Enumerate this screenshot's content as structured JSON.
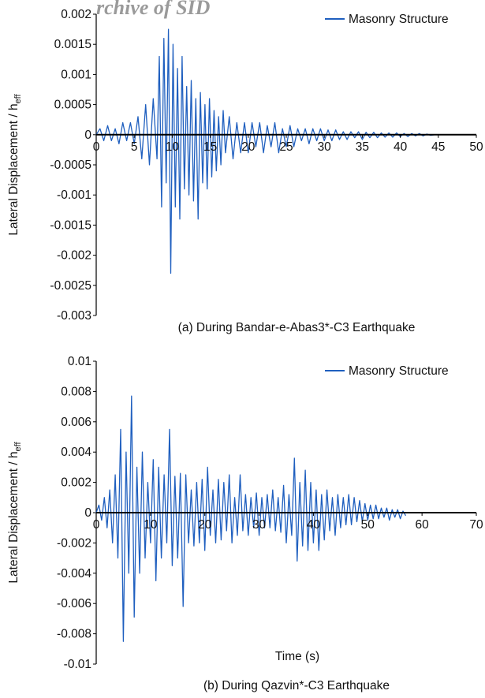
{
  "watermark": "rchive of SID",
  "colors": {
    "series": "#1f5fbf",
    "axis": "#000000",
    "text": "#111111"
  },
  "chart_data": [
    {
      "type": "line",
      "caption": "(a) During Bandar-e-Abas3*-C3 Earthquake",
      "ylabel": "Lateral Displacement / h",
      "ylabel_sub": "eff",
      "xlabel": "",
      "xlim": [
        0,
        50
      ],
      "ylim": [
        -0.003,
        0.002
      ],
      "xticks": [
        "0",
        "5",
        "10",
        "15",
        "20",
        "25",
        "30",
        "35",
        "40",
        "45",
        "50"
      ],
      "yticks": [
        "0.002",
        "0.0015",
        "0.001",
        "0.0005",
        "0",
        "-0.0005",
        "-0.001",
        "-0.0015",
        "-0.002",
        "-0.0025",
        "-0.003"
      ],
      "legend": "top-right",
      "grid": false,
      "series": [
        {
          "name": "Masonry Structure",
          "x": [
            0,
            0.5,
            1,
            1.5,
            2,
            2.5,
            3,
            3.5,
            4,
            4.5,
            5,
            5.5,
            6,
            6.5,
            7,
            7.5,
            8,
            8.3,
            8.6,
            8.9,
            9.2,
            9.5,
            9.8,
            10.1,
            10.4,
            10.7,
            11,
            11.3,
            11.6,
            11.9,
            12.2,
            12.5,
            12.8,
            13.1,
            13.4,
            13.7,
            14,
            14.3,
            14.6,
            14.9,
            15.2,
            15.5,
            15.8,
            16.1,
            16.4,
            16.7,
            17,
            17.5,
            18,
            18.5,
            19,
            19.5,
            20,
            20.5,
            21,
            21.5,
            22,
            22.5,
            23,
            23.5,
            24,
            24.5,
            25,
            25.5,
            26,
            26.5,
            27,
            27.5,
            28,
            28.5,
            29,
            29.5,
            30,
            30.5,
            31,
            31.5,
            32,
            32.5,
            33,
            33.5,
            34,
            34.5,
            35,
            35.5,
            36,
            36.5,
            37,
            37.5,
            38,
            38.5,
            39,
            39.5,
            40,
            40.5,
            41,
            41.5,
            42,
            42.5,
            43,
            43.5,
            44,
            44.5
          ],
          "y": [
            0,
            0.0001,
            -0.0001,
            0.00015,
            -0.0001,
            0.0001,
            -0.00015,
            0.0002,
            -0.0001,
            0.0002,
            -0.00015,
            0.0003,
            -0.0004,
            0.0005,
            -0.0005,
            0.0006,
            -0.0004,
            0.0013,
            -0.0012,
            0.0016,
            -0.0008,
            0.00175,
            -0.0023,
            0.0015,
            -0.0012,
            0.0011,
            -0.0014,
            0.0013,
            -0.0009,
            0.0008,
            -0.001,
            0.0009,
            -0.0011,
            0.0006,
            -0.0014,
            0.0007,
            -0.0008,
            0.0005,
            -0.0009,
            0.0006,
            -0.0007,
            0.0004,
            -0.0006,
            0.0003,
            -0.0005,
            0.0004,
            -0.0003,
            0.0003,
            -0.0004,
            0.0002,
            -0.0003,
            0.0002,
            -0.0003,
            0.0002,
            -0.0002,
            0.0002,
            -0.0003,
            0.00015,
            -0.0002,
            0.0002,
            -0.0003,
            0.0001,
            -0.0002,
            0.00015,
            -0.0002,
            0.0001,
            -0.0001,
            0.0001,
            -0.00015,
            0.0001,
            -0.0001,
            0.0001,
            -0.0001,
            8e-05,
            -0.0001,
            8e-05,
            -8e-05,
            5e-05,
            -8e-05,
            5e-05,
            -5e-05,
            5e-05,
            -8e-05,
            4e-05,
            -5e-05,
            4e-05,
            -5e-05,
            3e-05,
            -4e-05,
            3e-05,
            -4e-05,
            3e-05,
            -3e-05,
            2e-05,
            -3e-05,
            2e-05,
            -2e-05,
            2e-05,
            -2e-05,
            1e-05,
            -1e-05,
            0
          ]
        }
      ]
    },
    {
      "type": "line",
      "caption": "(b) During Qazvin*-C3 Earthquake",
      "ylabel": "Lateral Displacement / h",
      "ylabel_sub": "eff",
      "xlabel": "Time (s)",
      "xlim": [
        0,
        70
      ],
      "ylim": [
        -0.01,
        0.01
      ],
      "xticks": [
        "0",
        "10",
        "20",
        "30",
        "40",
        "50",
        "60",
        "70"
      ],
      "yticks": [
        "0.01",
        "0.008",
        "0.006",
        "0.004",
        "0.002",
        "0",
        "-0.002",
        "-0.004",
        "-0.006",
        "-0.008",
        "-0.01"
      ],
      "legend": "top-right",
      "grid": false,
      "series": [
        {
          "name": "Masonry Structure",
          "x": [
            0,
            0.5,
            1,
            1.5,
            2,
            2.5,
            3,
            3.5,
            4,
            4.5,
            5,
            5.5,
            6,
            6.5,
            7,
            7.5,
            8,
            8.5,
            9,
            9.5,
            10,
            10.5,
            11,
            11.5,
            12,
            12.5,
            13,
            13.5,
            14,
            14.5,
            15,
            15.5,
            16,
            16.5,
            17,
            17.5,
            18,
            18.5,
            19,
            19.5,
            20,
            20.5,
            21,
            21.5,
            22,
            22.5,
            23,
            23.5,
            24,
            24.5,
            25,
            25.5,
            26,
            26.5,
            27,
            27.5,
            28,
            28.5,
            29,
            29.5,
            30,
            30.5,
            31,
            31.5,
            32,
            32.5,
            33,
            33.5,
            34,
            34.5,
            35,
            35.5,
            36,
            36.5,
            37,
            37.5,
            38,
            38.5,
            39,
            39.5,
            40,
            40.5,
            41,
            41.5,
            42,
            42.5,
            43,
            43.5,
            44,
            44.5,
            45,
            45.5,
            46,
            46.5,
            47,
            47.5,
            48,
            48.5,
            49,
            49.5,
            50,
            50.5,
            51,
            51.5,
            52,
            52.5,
            53,
            53.5,
            54,
            54.5,
            55,
            55.5,
            56,
            56.5,
            57
          ],
          "y": [
            0,
            0.0005,
            -0.0005,
            0.001,
            -0.001,
            0.0015,
            -0.002,
            0.0025,
            -0.003,
            0.0055,
            -0.0085,
            0.004,
            -0.004,
            0.0077,
            -0.0069,
            0.003,
            -0.004,
            0.004,
            -0.003,
            0.002,
            -0.002,
            0.0035,
            -0.0045,
            0.003,
            -0.003,
            0.0025,
            -0.002,
            0.0055,
            -0.0035,
            0.0024,
            -0.003,
            0.0026,
            -0.0062,
            0.0025,
            -0.002,
            0.0015,
            -0.0022,
            0.002,
            -0.002,
            0.0022,
            -0.0025,
            0.003,
            -0.0015,
            0.0015,
            -0.002,
            0.0022,
            -0.0018,
            0.002,
            -0.0012,
            0.0025,
            -0.002,
            0.001,
            -0.0015,
            0.0025,
            -0.0012,
            0.0012,
            -0.0015,
            0.001,
            -0.001,
            0.0013,
            -0.0015,
            0.001,
            -0.001,
            0.0012,
            -0.001,
            0.0015,
            -0.0012,
            0.001,
            -0.0013,
            0.0018,
            -0.002,
            0.0012,
            -0.0015,
            0.0036,
            -0.0032,
            0.002,
            -0.0022,
            0.0028,
            -0.0025,
            0.002,
            -0.002,
            0.0015,
            -0.0025,
            0.0012,
            -0.0018,
            0.0015,
            -0.0012,
            0.001,
            -0.0015,
            0.0012,
            -0.001,
            0.001,
            -0.0008,
            0.0012,
            -0.0008,
            0.001,
            -0.0006,
            0.0008,
            -0.0006,
            0.0006,
            -0.0005,
            0.0005,
            -0.0004,
            0.0005,
            -0.0004,
            0.0003,
            -0.0003,
            0.0003,
            -0.0005,
            0.0002,
            -0.0003,
            0.0002,
            -0.0004,
            0.0001,
            -0.0002
          ]
        }
      ]
    }
  ]
}
